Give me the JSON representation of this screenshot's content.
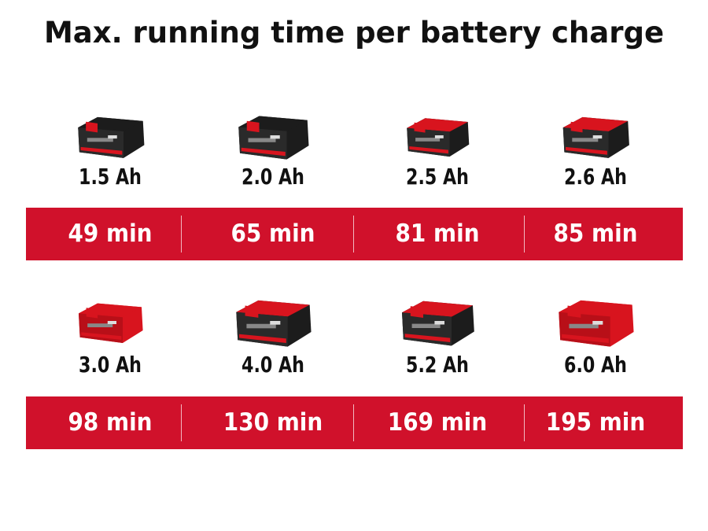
{
  "title": "Max. running time per battery charge",
  "colors": {
    "band": "#d0112b",
    "battery_red": "#d8141e",
    "battery_black": "#1c1c1c"
  },
  "rows": [
    [
      {
        "capacity": "1.5 Ah",
        "runtime": "49 min",
        "icon": "battery-pack-icon"
      },
      {
        "capacity": "2.0 Ah",
        "runtime": "65 min",
        "icon": "battery-pack-icon"
      },
      {
        "capacity": "2.5 Ah",
        "runtime": "81 min",
        "icon": "battery-pack-icon"
      },
      {
        "capacity": "2.6 Ah",
        "runtime": "85 min",
        "icon": "battery-pack-icon"
      }
    ],
    [
      {
        "capacity": "3.0 Ah",
        "runtime": "98 min",
        "icon": "battery-pack-icon"
      },
      {
        "capacity": "4.0 Ah",
        "runtime": "130 min",
        "icon": "battery-pack-icon"
      },
      {
        "capacity": "5.2 Ah",
        "runtime": "169 min",
        "icon": "battery-pack-icon"
      },
      {
        "capacity": "6.0 Ah",
        "runtime": "195 min",
        "icon": "battery-pack-icon"
      }
    ]
  ]
}
